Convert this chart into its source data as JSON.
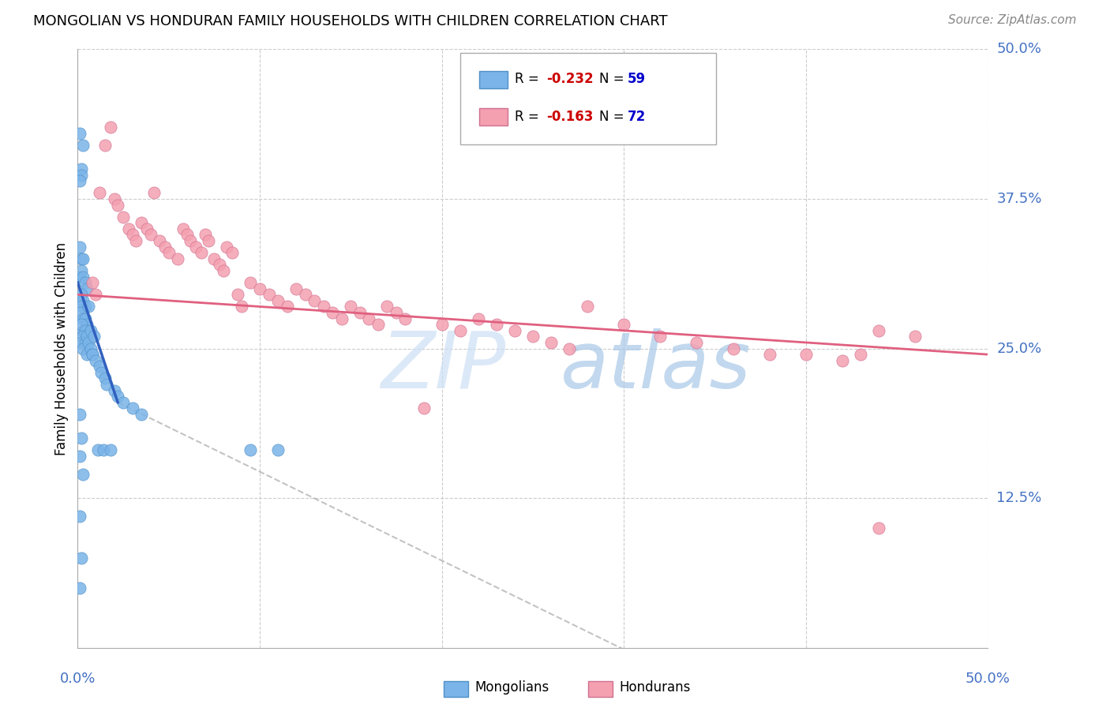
{
  "title": "MONGOLIAN VS HONDURAN FAMILY HOUSEHOLDS WITH CHILDREN CORRELATION CHART",
  "source": "Source: ZipAtlas.com",
  "ylabel": "Family Households with Children",
  "right_yticks": [
    "50.0%",
    "37.5%",
    "25.0%",
    "12.5%"
  ],
  "right_ytick_vals": [
    0.5,
    0.375,
    0.25,
    0.125
  ],
  "bottom_xtick_left": "0.0%",
  "bottom_xtick_right": "50.0%",
  "xmin": 0.0,
  "xmax": 0.5,
  "ymin": 0.0,
  "ymax": 0.5,
  "mongolian_color": "#7ab4e8",
  "honduran_color": "#f4a0b0",
  "mongolian_trend_color": "#3060c0",
  "honduran_trend_color": "#e06080",
  "dashed_trend_color": "#aaaaaa",
  "watermark_zip_color": "#ccdff5",
  "watermark_atlas_color": "#a8c8e8",
  "legend_mongolian_label": "R = -0.232   N = 59",
  "legend_honduran_label": "R = -0.163   N = 72",
  "legend_bottom_mongolian": "Mongolians",
  "legend_bottom_honduran": "Hondurans",
  "mongolians_x": [
    0.001,
    0.002,
    0.001,
    0.003,
    0.002,
    0.003,
    0.004,
    0.005,
    0.002,
    0.003,
    0.004,
    0.002,
    0.001,
    0.003,
    0.004,
    0.005,
    0.003,
    0.002,
    0.004,
    0.003,
    0.002,
    0.004,
    0.003,
    0.005,
    0.006,
    0.005,
    0.006,
    0.007,
    0.008,
    0.007,
    0.009,
    0.008,
    0.01,
    0.011,
    0.012,
    0.013,
    0.014,
    0.015,
    0.016,
    0.018,
    0.02,
    0.022,
    0.025,
    0.03,
    0.035,
    0.001,
    0.002,
    0.001,
    0.003,
    0.001,
    0.002,
    0.001,
    0.002,
    0.003,
    0.001,
    0.002,
    0.095,
    0.11,
    0.001
  ],
  "mongolians_y": [
    0.335,
    0.325,
    0.31,
    0.325,
    0.315,
    0.31,
    0.305,
    0.3,
    0.295,
    0.29,
    0.285,
    0.285,
    0.28,
    0.275,
    0.275,
    0.27,
    0.265,
    0.27,
    0.265,
    0.26,
    0.255,
    0.255,
    0.25,
    0.245,
    0.285,
    0.26,
    0.255,
    0.25,
    0.245,
    0.265,
    0.26,
    0.245,
    0.24,
    0.165,
    0.235,
    0.23,
    0.165,
    0.225,
    0.22,
    0.165,
    0.215,
    0.21,
    0.205,
    0.2,
    0.195,
    0.195,
    0.175,
    0.16,
    0.145,
    0.11,
    0.075,
    0.05,
    0.4,
    0.42,
    0.43,
    0.395,
    0.165,
    0.165,
    0.39
  ],
  "hondurans_x": [
    0.008,
    0.01,
    0.012,
    0.015,
    0.018,
    0.02,
    0.022,
    0.025,
    0.028,
    0.03,
    0.032,
    0.035,
    0.038,
    0.04,
    0.042,
    0.045,
    0.048,
    0.05,
    0.055,
    0.058,
    0.06,
    0.062,
    0.065,
    0.068,
    0.07,
    0.072,
    0.075,
    0.078,
    0.08,
    0.082,
    0.085,
    0.088,
    0.09,
    0.095,
    0.1,
    0.105,
    0.11,
    0.115,
    0.12,
    0.125,
    0.13,
    0.135,
    0.14,
    0.145,
    0.15,
    0.155,
    0.16,
    0.165,
    0.17,
    0.175,
    0.18,
    0.19,
    0.2,
    0.21,
    0.22,
    0.23,
    0.24,
    0.25,
    0.26,
    0.27,
    0.28,
    0.3,
    0.32,
    0.34,
    0.36,
    0.38,
    0.4,
    0.42,
    0.44,
    0.46,
    0.43,
    0.44
  ],
  "hondurans_y": [
    0.305,
    0.295,
    0.38,
    0.42,
    0.435,
    0.375,
    0.37,
    0.36,
    0.35,
    0.345,
    0.34,
    0.355,
    0.35,
    0.345,
    0.38,
    0.34,
    0.335,
    0.33,
    0.325,
    0.35,
    0.345,
    0.34,
    0.335,
    0.33,
    0.345,
    0.34,
    0.325,
    0.32,
    0.315,
    0.335,
    0.33,
    0.295,
    0.285,
    0.305,
    0.3,
    0.295,
    0.29,
    0.285,
    0.3,
    0.295,
    0.29,
    0.285,
    0.28,
    0.275,
    0.285,
    0.28,
    0.275,
    0.27,
    0.285,
    0.28,
    0.275,
    0.2,
    0.27,
    0.265,
    0.275,
    0.27,
    0.265,
    0.26,
    0.255,
    0.25,
    0.285,
    0.27,
    0.26,
    0.255,
    0.25,
    0.245,
    0.245,
    0.24,
    0.265,
    0.26,
    0.245,
    0.1
  ]
}
